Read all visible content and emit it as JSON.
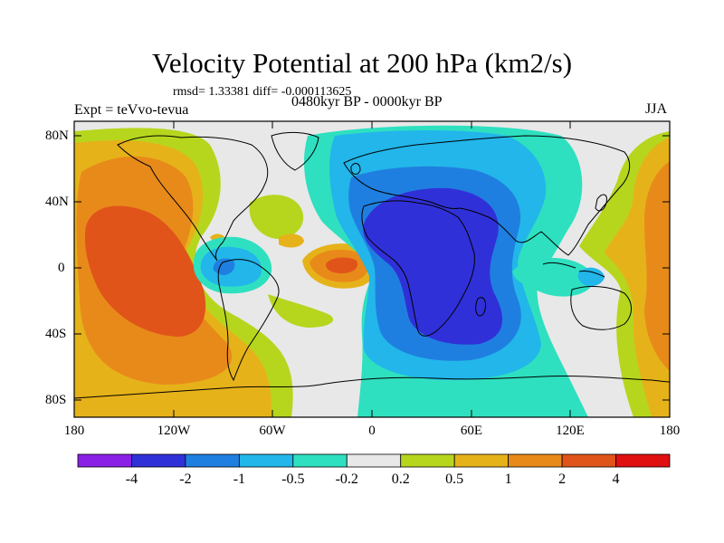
{
  "title": "Velocity Potential at 200 hPa (km2/s)",
  "stats": "rmsd= 1.33381 diff= -0.000113625",
  "expt": "Expt = teVvo-tevua",
  "period": "0480kyr BP - 0000kyr BP",
  "season": "JJA",
  "axes": {
    "lat_ticks": [
      "80N",
      "40N",
      "0",
      "40S",
      "80S"
    ],
    "lon_ticks": [
      "180",
      "120W",
      "60W",
      "0",
      "60E",
      "120E",
      "180"
    ]
  },
  "colorbar": {
    "labels": [
      "-4",
      "-2",
      "-1",
      "-0.5",
      "-0.2",
      "0.2",
      "0.5",
      "1",
      "2",
      "4"
    ],
    "colors": [
      "#8a20e6",
      "#3030d8",
      "#1f7fe0",
      "#22b6ea",
      "#2ee0c0",
      "#e8e8e8",
      "#b6d61e",
      "#e6b21a",
      "#e88a1a",
      "#e0541a",
      "#e01010"
    ]
  }
}
